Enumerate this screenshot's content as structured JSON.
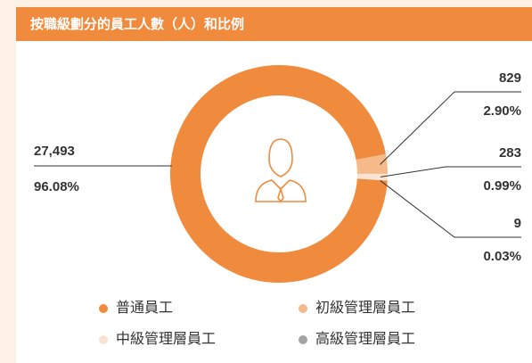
{
  "chart_data": {
    "type": "donut",
    "title": "按職級劃分的員工人數（人）和比例",
    "categories": [
      "普通員工",
      "初級管理層員工",
      "中級管理層員工",
      "高級管理層員工"
    ],
    "values": [
      27493,
      829,
      283,
      9
    ],
    "value_labels": [
      "27,493",
      "829",
      "283",
      "9"
    ],
    "percentages": [
      96.08,
      2.9,
      0.99,
      0.03
    ],
    "percentage_labels": [
      "96.08%",
      "2.90%",
      "0.99%",
      "0.03%"
    ],
    "colors": [
      "#f08a3c",
      "#f6b98a",
      "#fbe3d3",
      "#a3a3a3"
    ]
  }
}
